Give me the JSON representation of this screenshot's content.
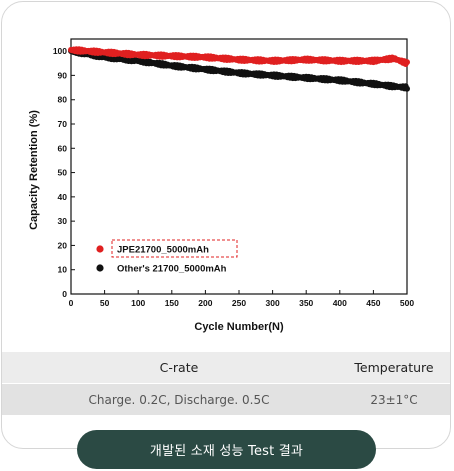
{
  "chart_data": {
    "type": "scatter",
    "xlabel": "Cycle Number(N)",
    "ylabel": "Capacity Retention (%)",
    "xlim": [
      0,
      500
    ],
    "ylim": [
      0,
      105
    ],
    "x_ticks": [
      0,
      50,
      100,
      150,
      200,
      250,
      300,
      350,
      400,
      450,
      500
    ],
    "y_ticks": [
      0,
      10,
      20,
      30,
      40,
      50,
      60,
      70,
      80,
      90,
      100
    ],
    "grid": false,
    "legend_position": "bottom-left",
    "series": [
      {
        "name": "JPE21700_5000mAh",
        "color": "#e02020",
        "x": [
          0,
          50,
          100,
          150,
          200,
          250,
          300,
          350,
          400,
          450,
          480,
          500
        ],
        "y": [
          100.5,
          99.5,
          98.5,
          98,
          97.5,
          96.5,
          96,
          96.5,
          96,
          96,
          97,
          95
        ]
      },
      {
        "name": "Other's 21700_5000mAh",
        "color": "#111111",
        "x": [
          0,
          50,
          100,
          150,
          200,
          250,
          300,
          350,
          400,
          450,
          480,
          500
        ],
        "y": [
          100,
          97.5,
          96,
          94,
          92.5,
          91,
          90,
          89,
          88,
          86.5,
          85.5,
          85
        ]
      }
    ]
  },
  "conditions": {
    "headers": [
      "C-rate",
      "Temperature"
    ],
    "values": [
      "Charge. 0.2C, Discharge. 0.5C",
      "23±1°C"
    ]
  },
  "caption": "개발된 소재 성능 Test 결과"
}
